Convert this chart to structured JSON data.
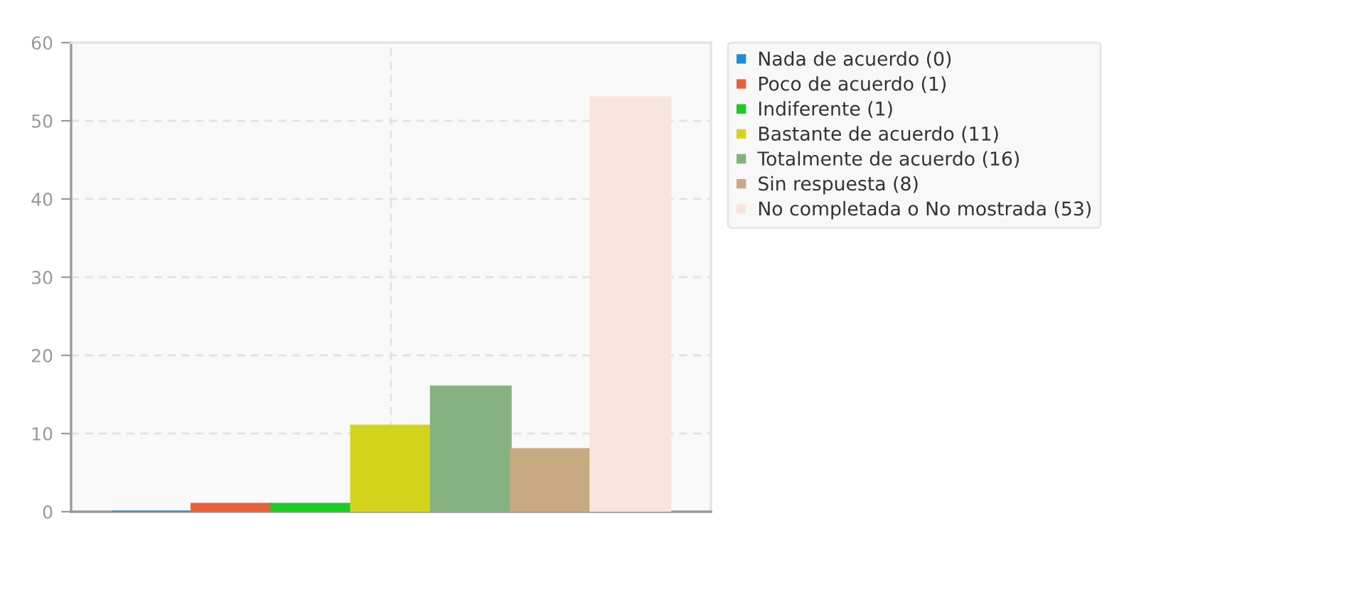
{
  "chart_data": {
    "type": "bar",
    "categories": [
      null
    ],
    "series": [
      {
        "name": "Nada de acuerdo (0)",
        "color": "#1f8dd6",
        "values": [
          0
        ]
      },
      {
        "name": "Poco de acuerdo (1)",
        "color": "#e8603a",
        "values": [
          1
        ]
      },
      {
        "name": "Indiferente (1)",
        "color": "#1dcd24",
        "values": [
          1
        ]
      },
      {
        "name": "Bastante de acuerdo (11)",
        "color": "#d4d41c",
        "values": [
          11
        ]
      },
      {
        "name": "Totalmente de acuerdo (16)",
        "color": "#86b282",
        "values": [
          16
        ]
      },
      {
        "name": "Sin respuesta (8)",
        "color": "#c8aa82",
        "values": [
          8
        ]
      },
      {
        "name": "No completada o No mostrada (53)",
        "color": "#fae5dc",
        "values": [
          53
        ]
      }
    ],
    "ylim": [
      0,
      60
    ],
    "yticks": [
      0,
      10,
      20,
      30,
      40,
      50,
      60
    ],
    "grid": true,
    "legend": "top right"
  }
}
